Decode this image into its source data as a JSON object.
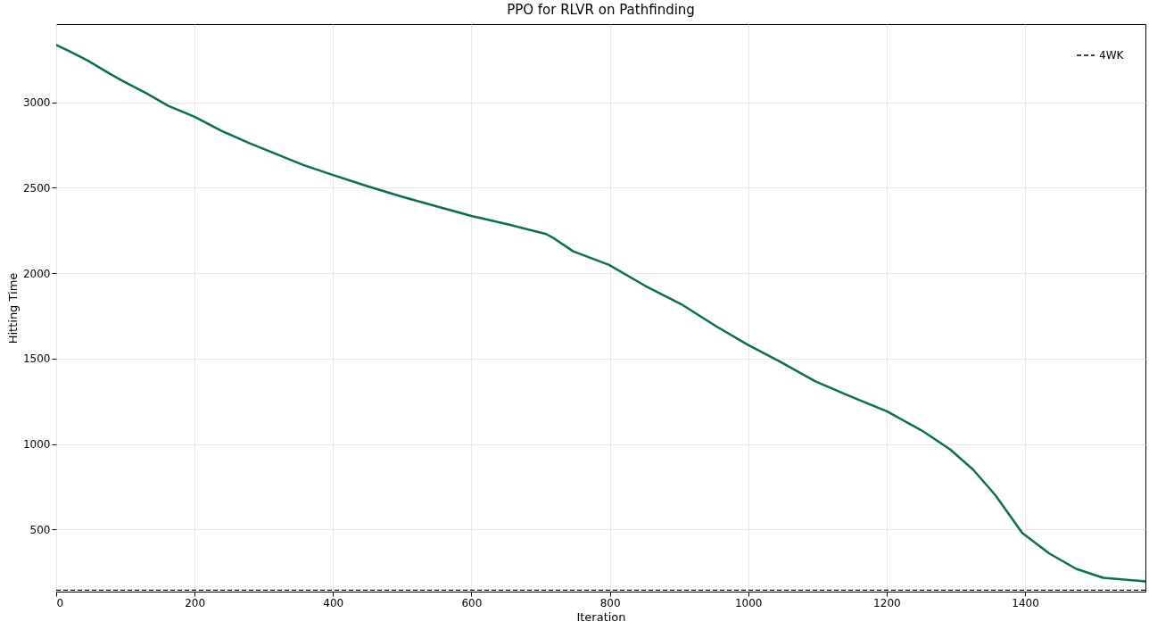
{
  "chart_data": {
    "type": "line",
    "title": "PPO for RLVR on Pathfinding",
    "xlabel": "Iteration",
    "ylabel": "Hitting Time",
    "x": [
      0,
      19,
      45,
      78,
      97,
      130,
      162,
      200,
      240,
      279,
      318,
      357,
      400,
      448,
      500,
      552,
      600,
      656,
      708,
      720,
      747,
      799,
      851,
      903,
      955,
      1000,
      1045,
      1097,
      1149,
      1201,
      1253,
      1292,
      1325,
      1357,
      1396,
      1435,
      1474,
      1513,
      1574
    ],
    "series": [
      {
        "color": "#0b6e4f",
        "values": [
          3335,
          3298,
          3245,
          3165,
          3122,
          3053,
          2979,
          2915,
          2830,
          2761,
          2697,
          2633,
          2574,
          2511,
          2447,
          2388,
          2335,
          2282,
          2229,
          2202,
          2128,
          2048,
          1926,
          1819,
          1686,
          1580,
          1484,
          1367,
          1277,
          1191,
          1074,
          968,
          851,
          702,
          480,
          360,
          270,
          218,
          197
        ]
      }
    ],
    "xlim": [
      0,
      1574
    ],
    "ylim": [
      137,
      3457
    ],
    "xticks": [
      0,
      200,
      400,
      600,
      800,
      1000,
      1200,
      1400
    ],
    "yticks": [
      500,
      1000,
      1500,
      2000,
      2500,
      3000
    ],
    "ref_lines": [
      {
        "axis": "y",
        "value": 145,
        "label": "4WK",
        "color": "#000000",
        "line_style": "dashed"
      }
    ],
    "grid": true,
    "legend": "top right",
    "line_style": "solid"
  }
}
